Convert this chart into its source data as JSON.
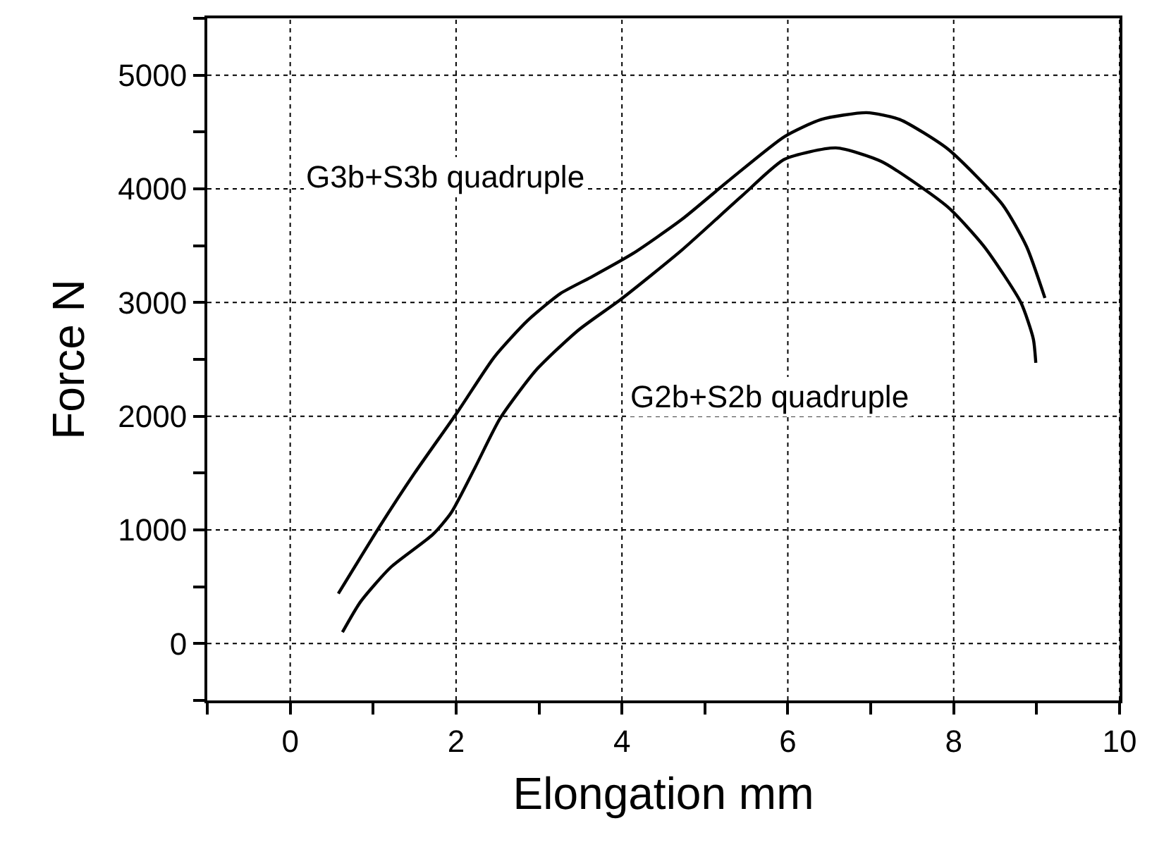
{
  "chart_data": {
    "type": "line",
    "xlabel": "Elongation mm",
    "ylabel": "Force N",
    "xlim": [
      -1,
      10
    ],
    "ylim": [
      -500,
      5500
    ],
    "xticks": [
      {
        "value": -1,
        "label": null
      },
      0,
      {
        "value": 1,
        "label": null
      },
      2,
      {
        "value": 3,
        "label": null
      },
      4,
      {
        "value": 5,
        "label": null
      },
      6,
      {
        "value": 7,
        "label": null
      },
      8,
      {
        "value": 9,
        "label": null
      },
      10
    ],
    "yticks": [
      {
        "value": -500,
        "label": null
      },
      0,
      {
        "value": 500,
        "label": null
      },
      1000,
      {
        "value": 1500,
        "label": null
      },
      2000,
      {
        "value": 2500,
        "label": null
      },
      3000,
      {
        "value": 3500,
        "label": null
      },
      4000,
      {
        "value": 4500,
        "label": null
      },
      5000,
      {
        "value": 5500,
        "label": null
      }
    ],
    "grid": true,
    "marker": "none",
    "line_style": "solid",
    "series": [
      {
        "color": "#000000",
        "x": [
          0.58,
          1.07,
          1.5,
          2.02,
          2.46,
          2.86,
          3.26,
          3.62,
          4.13,
          4.72,
          5.3,
          5.96,
          6.4,
          6.95,
          7.35,
          7.93,
          8.59,
          8.88,
          9.1
        ],
        "values": [
          440,
          1020,
          1500,
          2040,
          2520,
          2840,
          3080,
          3220,
          3430,
          3730,
          4080,
          4460,
          4610,
          4670,
          4610,
          4350,
          3860,
          3490,
          3040
        ]
      },
      {
        "color": "#000000",
        "x": [
          0.63,
          0.85,
          1.21,
          1.72,
          1.94,
          2.23,
          2.53,
          2.97,
          3.48,
          3.99,
          4.72,
          5.45,
          5.96,
          6.58,
          7.13,
          7.93,
          8.37,
          8.81,
          8.96,
          8.99
        ],
        "values": [
          100,
          370,
          670,
          960,
          1150,
          1550,
          1980,
          2410,
          2760,
          3030,
          3460,
          3940,
          4260,
          4360,
          4240,
          3840,
          3490,
          3000,
          2680,
          2470
        ]
      }
    ],
    "annotations": [
      "G3b+S3b quadruple",
      "G2b+S2b quadruple"
    ]
  }
}
